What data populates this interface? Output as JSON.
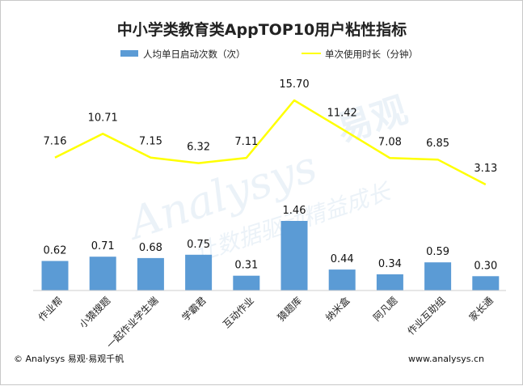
{
  "chart_data": {
    "type": "bar+line",
    "title": "中小学类教育类AppTOP10用户粘性指标",
    "categories": [
      "作业帮",
      "小猿搜题",
      "一起作业学生端",
      "学霸君",
      "互动作业",
      "猿题库",
      "纳米盒",
      "阿凡题",
      "作业互助组",
      "家长通"
    ],
    "series": [
      {
        "name": "人均单日启动次数（次）",
        "type": "bar",
        "values": [
          0.62,
          0.71,
          0.68,
          0.75,
          0.31,
          1.46,
          0.44,
          0.34,
          0.59,
          0.3
        ]
      },
      {
        "name": "单次使用时长（分钟）",
        "type": "line",
        "values": [
          7.16,
          10.71,
          7.15,
          6.32,
          7.11,
          15.7,
          11.42,
          7.08,
          6.85,
          3.13
        ]
      }
    ],
    "legend_position": "top",
    "grid": false
  },
  "colors": {
    "bar": "#5b9bd5",
    "line": "#ffff00",
    "text": "#222222"
  },
  "watermark": {
    "brand": "Analysys",
    "cn": "易观",
    "slogan": "让数据驱动精益成长"
  },
  "footer": {
    "left": "© Analysys 易观·易观千帆",
    "right": "www.analysys.cn"
  }
}
